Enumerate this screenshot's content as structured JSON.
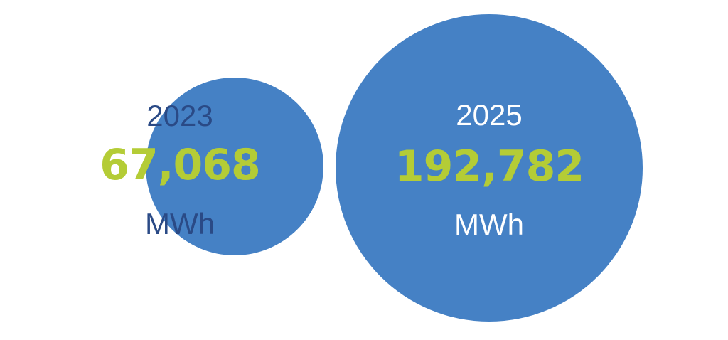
{
  "chart_data": {
    "type": "bubble",
    "title": "",
    "points": [
      {
        "year": "2023",
        "value": 67068,
        "value_label": "67,068",
        "unit": "MWh"
      },
      {
        "year": "2025",
        "value": 192782,
        "value_label": "192,782",
        "unit": "MWh"
      }
    ]
  },
  "colors": {
    "bubble": "#4581C5",
    "value_text": "#B4CC36",
    "year_text_outside": "#2A4A86",
    "year_text_inside": "#FFFFFF",
    "background": "#FFFFFF"
  }
}
